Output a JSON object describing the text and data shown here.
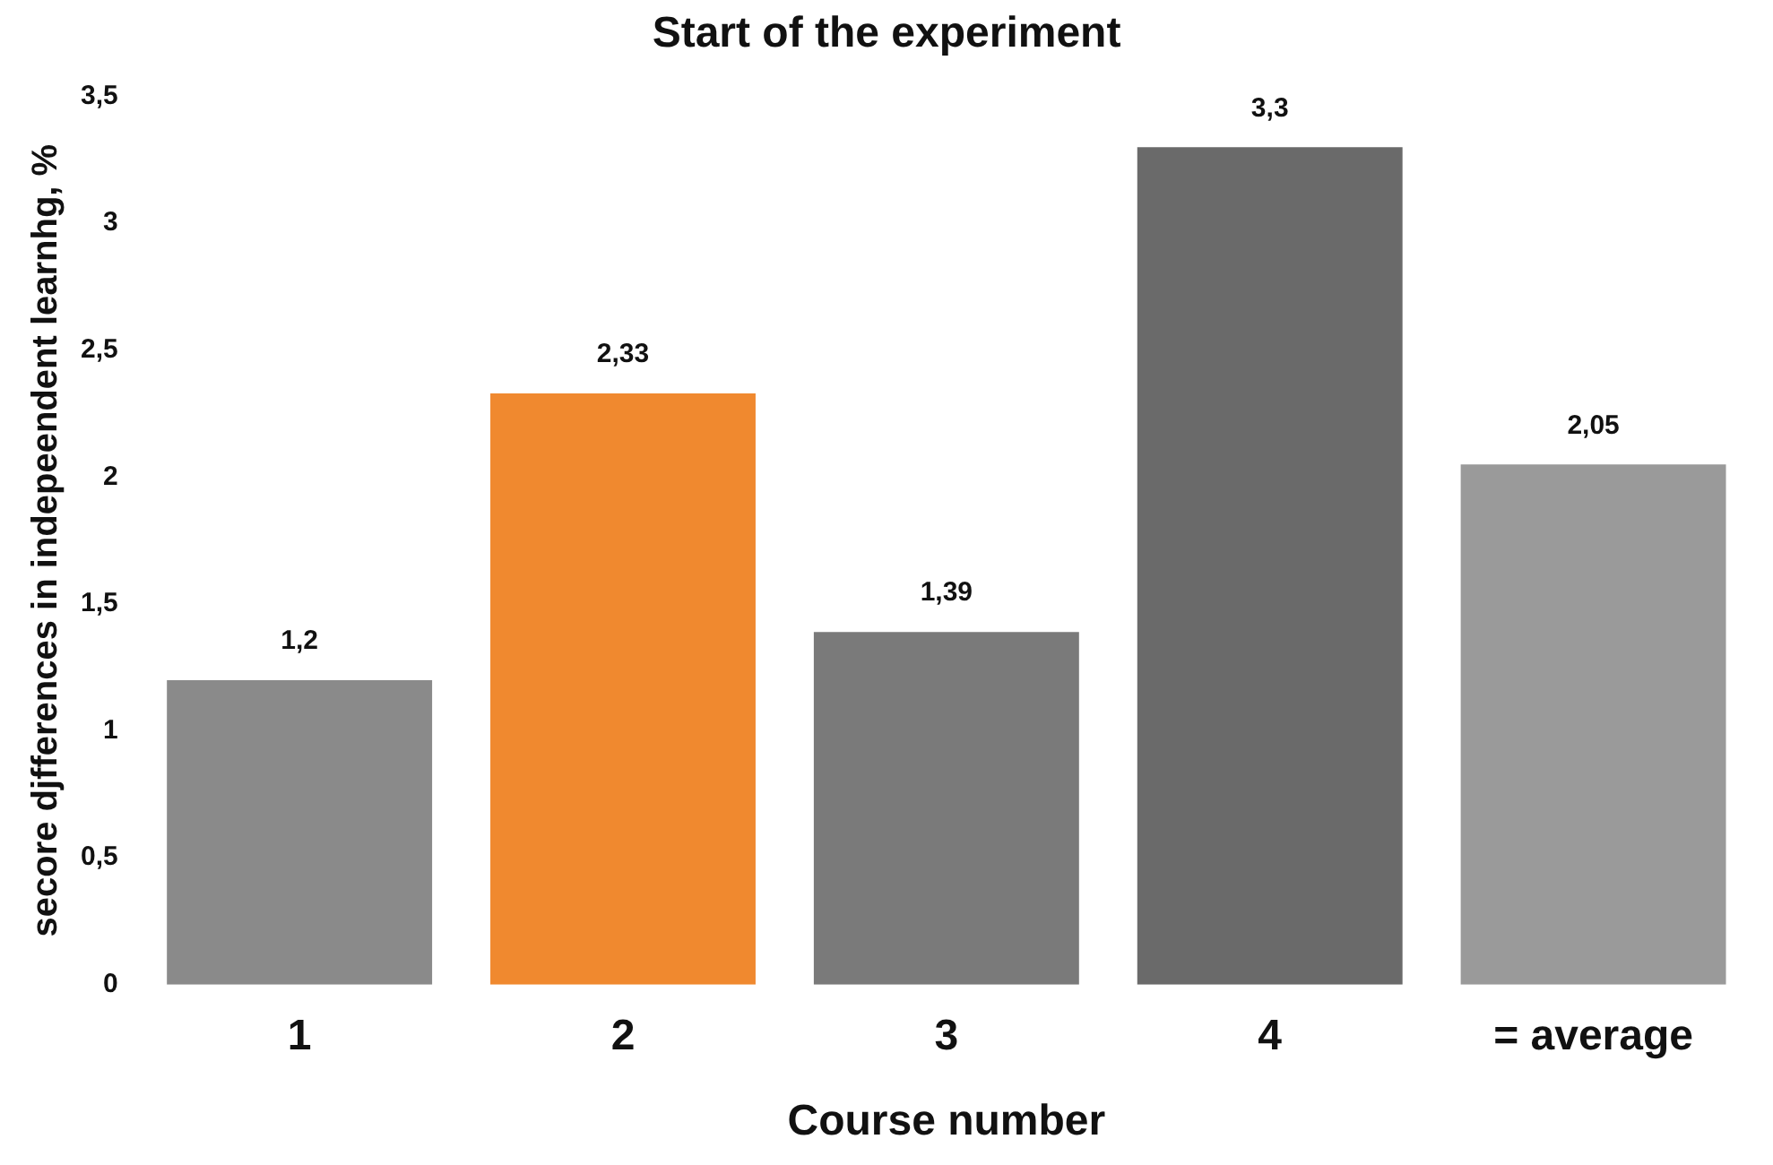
{
  "chart_data": {
    "type": "bar",
    "title": "Start of the experiment",
    "xlabel": "Course number",
    "ylabel": "secore djfferences in indepeendent learnhg, %",
    "categories": [
      "1",
      "2",
      "3",
      "4",
      "= average"
    ],
    "values": [
      1.2,
      2.33,
      1.39,
      3.3,
      2.05
    ],
    "colors": [
      "#8a8a8a",
      "#f0892f",
      "#7a7a7a",
      "#6a6a6a",
      "#9a9a9a"
    ],
    "value_labels": [
      "1,2",
      "2,33",
      "1,39",
      "3,3",
      "2,05"
    ],
    "ylim": [
      0,
      3.5
    ],
    "yticks": [
      0,
      {
        "value": 0.5,
        "label": "0,5"
      },
      1,
      {
        "value": 1.5,
        "label": "1,5"
      },
      2,
      {
        "value": 2.5,
        "label": "2,5"
      },
      3,
      {
        "value": 3.5,
        "label": "3,5"
      }
    ],
    "grid": false,
    "legend": false
  }
}
